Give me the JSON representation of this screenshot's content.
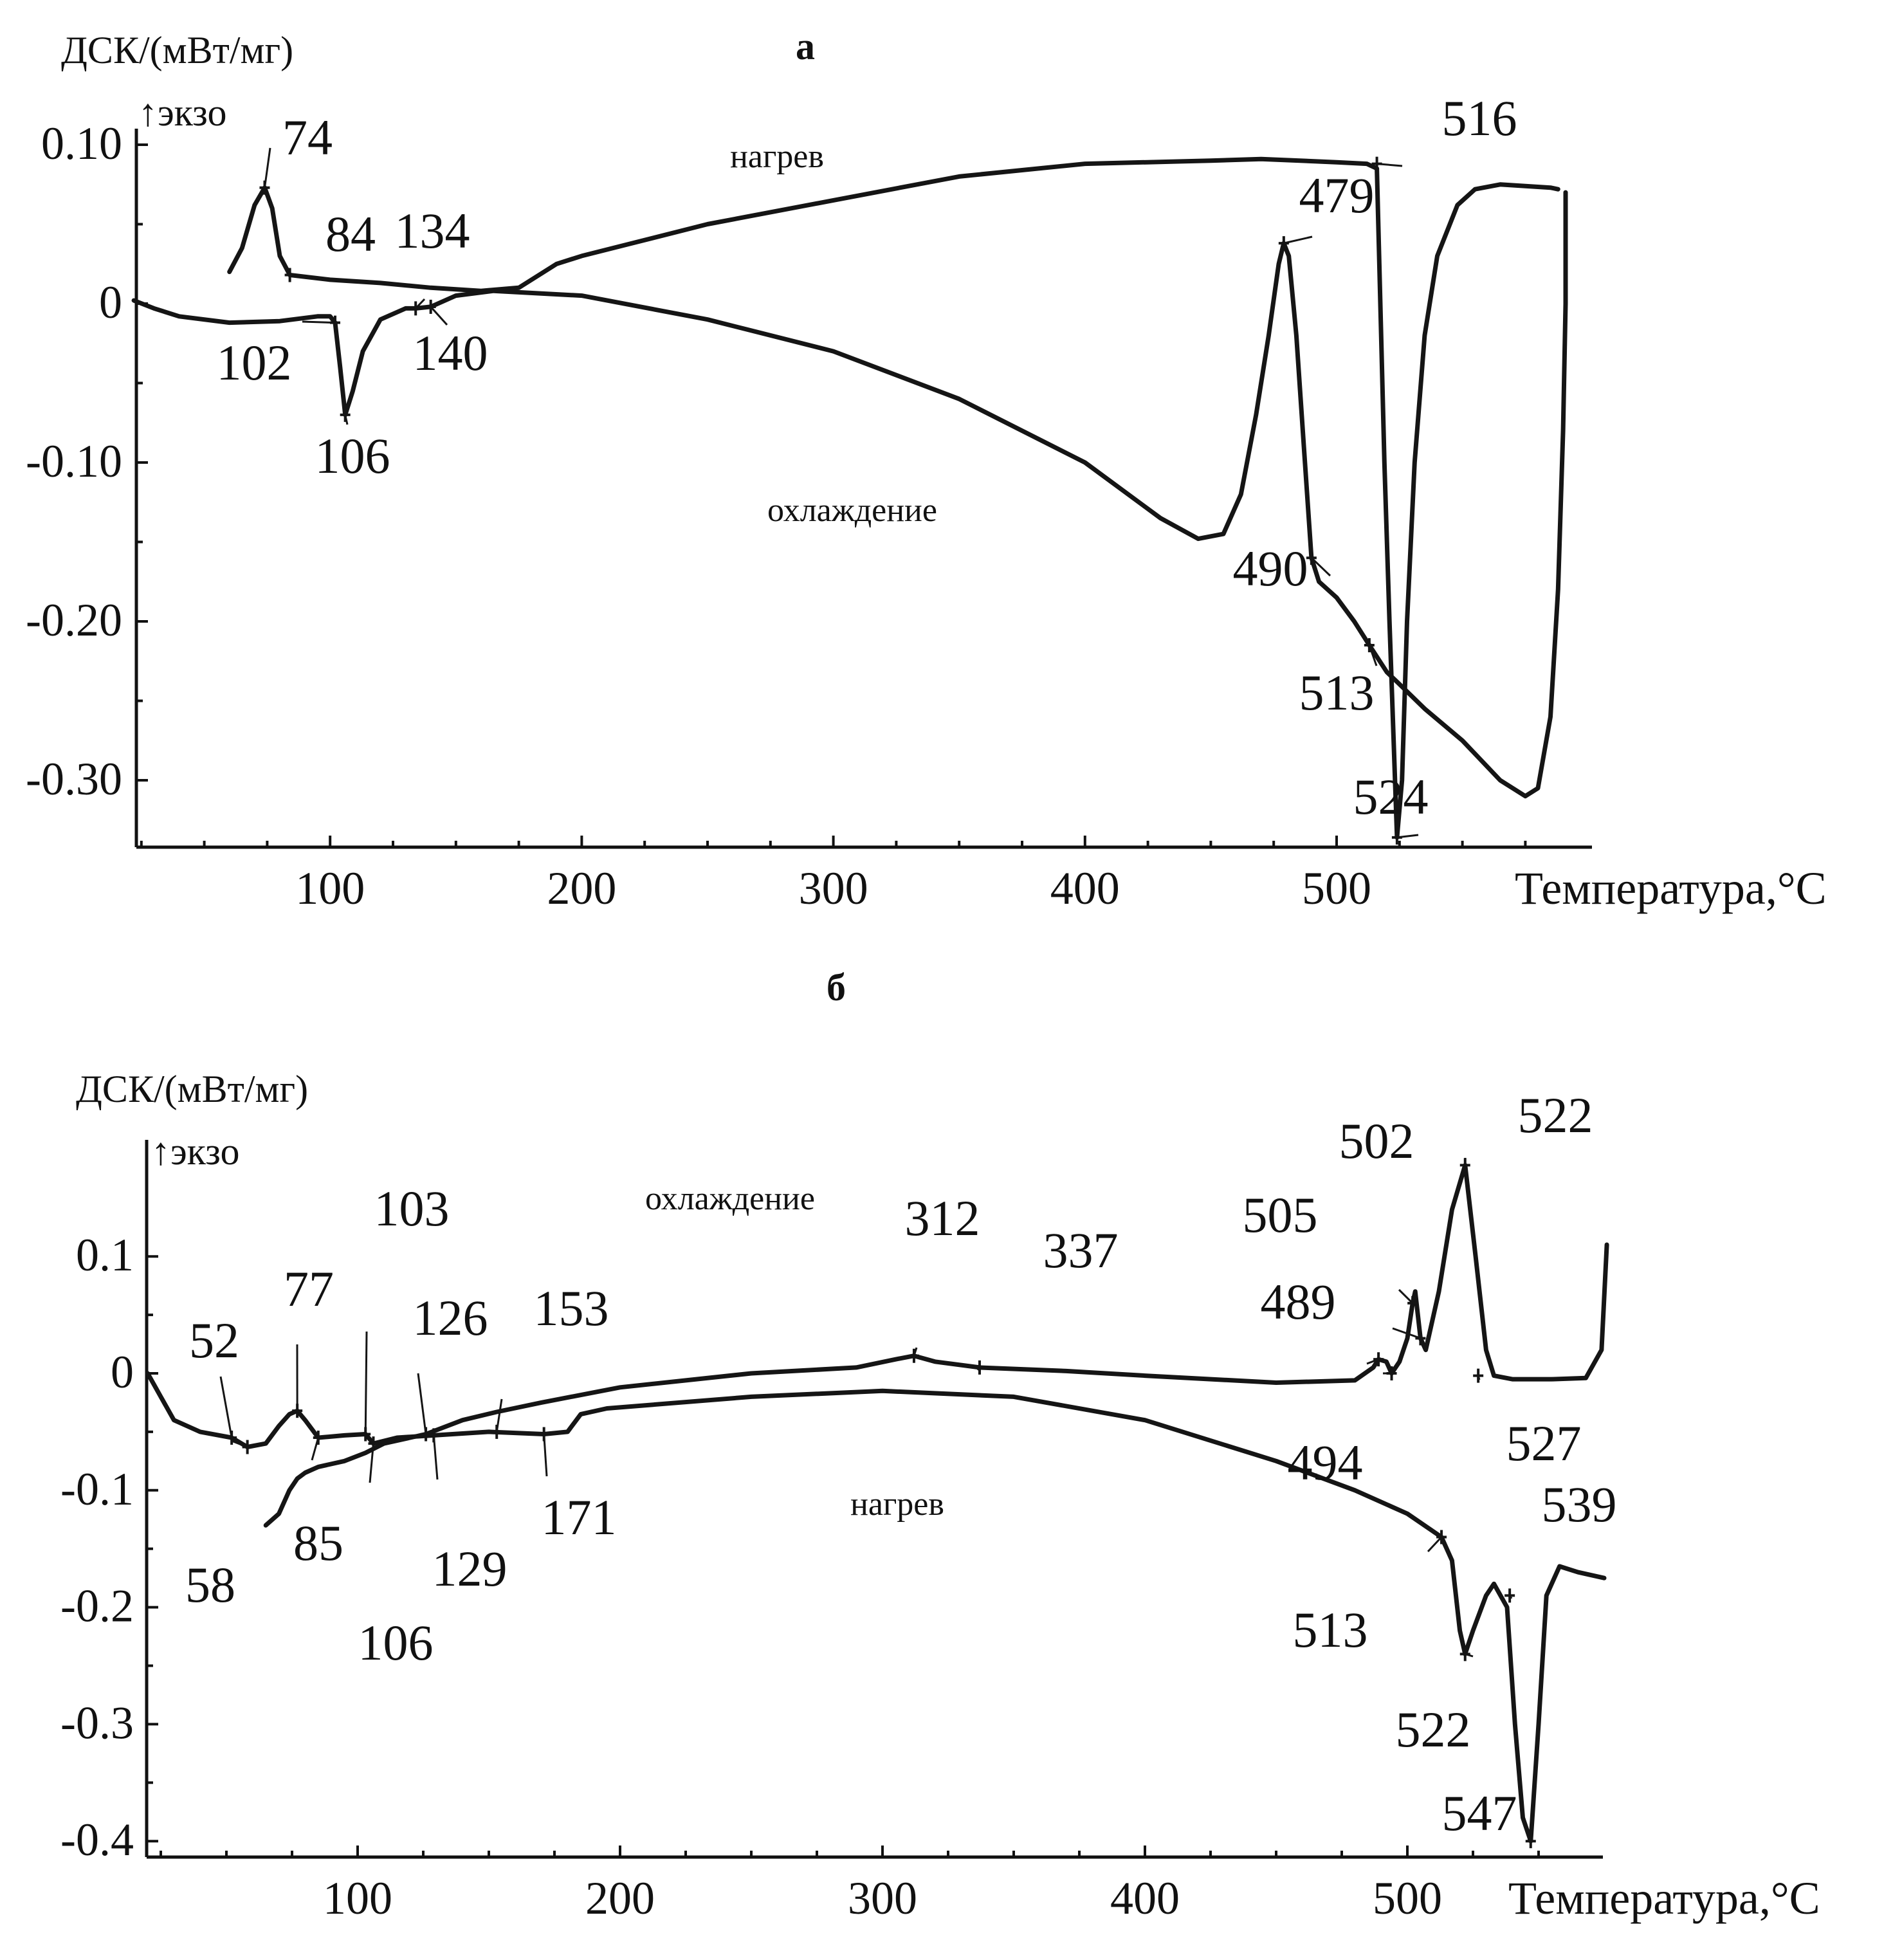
{
  "chart_data": [
    {
      "panel_label": "а",
      "type": "line",
      "ylabel": "ДСК/(мВт/мг)",
      "exo_label": "↑экзо",
      "xlabel": "Температура,°C",
      "xlim": [
        22,
        595
      ],
      "ylim": [
        -0.343,
        0.11
      ],
      "x_ticks": [
        100,
        200,
        300,
        400,
        500
      ],
      "y_ticks": [
        0.1,
        0,
        -0.1,
        -0.2,
        -0.3
      ],
      "y_tick_labels": [
        "0.10",
        "0",
        "-0.10",
        "-0.20",
        "-0.30"
      ],
      "series": [
        {
          "name": "нагрев",
          "label_at": [
            300,
            0.09
          ],
          "points": [
            [
              60,
              0.02
            ],
            [
              65,
              0.035
            ],
            [
              70,
              0.062
            ],
            [
              74,
              0.073
            ],
            [
              77,
              0.06
            ],
            [
              80,
              0.03
            ],
            [
              84,
              0.018
            ],
            [
              100,
              0.015
            ],
            [
              120,
              0.013
            ],
            [
              140,
              0.01
            ],
            [
              160,
              0.008
            ],
            [
              175,
              0.01
            ],
            [
              190,
              0.025
            ],
            [
              200,
              0.03
            ],
            [
              250,
              0.05
            ],
            [
              300,
              0.065
            ],
            [
              350,
              0.08
            ],
            [
              400,
              0.088
            ],
            [
              450,
              0.09
            ],
            [
              470,
              0.091
            ],
            [
              500,
              0.089
            ],
            [
              512,
              0.088
            ],
            [
              516,
              0.085
            ],
            [
              519,
              -0.1
            ],
            [
              521,
              -0.2
            ],
            [
              524,
              -0.336
            ],
            [
              526,
              -0.3
            ],
            [
              528,
              -0.2
            ],
            [
              531,
              -0.1
            ],
            [
              535,
              -0.02
            ],
            [
              540,
              0.03
            ],
            [
              548,
              0.062
            ],
            [
              555,
              0.072
            ],
            [
              565,
              0.075
            ],
            [
              575,
              0.074
            ],
            [
              585,
              0.073
            ],
            [
              588,
              0.072
            ]
          ]
        },
        {
          "name": "охлаждение",
          "label_at": [
            290,
            -0.13
          ],
          "points": [
            [
              22,
              0.002
            ],
            [
              30,
              -0.003
            ],
            [
              40,
              -0.008
            ],
            [
              60,
              -0.012
            ],
            [
              80,
              -0.011
            ],
            [
              95,
              -0.008
            ],
            [
              100,
              -0.008
            ],
            [
              102,
              -0.012
            ],
            [
              104,
              -0.04
            ],
            [
              106,
              -0.07
            ],
            [
              109,
              -0.055
            ],
            [
              113,
              -0.03
            ],
            [
              120,
              -0.01
            ],
            [
              130,
              -0.003
            ],
            [
              134,
              -0.003
            ],
            [
              140,
              -0.002
            ],
            [
              150,
              0.005
            ],
            [
              165,
              0.008
            ],
            [
              200,
              0.005
            ],
            [
              250,
              -0.01
            ],
            [
              300,
              -0.03
            ],
            [
              350,
              -0.06
            ],
            [
              400,
              -0.1
            ],
            [
              430,
              -0.135
            ],
            [
              445,
              -0.148
            ],
            [
              455,
              -0.145
            ],
            [
              462,
              -0.12
            ],
            [
              468,
              -0.07
            ],
            [
              473,
              -0.02
            ],
            [
              477,
              0.025
            ],
            [
              479,
              0.038
            ],
            [
              481,
              0.03
            ],
            [
              484,
              -0.02
            ],
            [
              487,
              -0.09
            ],
            [
              490,
              -0.16
            ],
            [
              493,
              -0.175
            ],
            [
              500,
              -0.185
            ],
            [
              507,
              -0.2
            ],
            [
              513,
              -0.215
            ],
            [
              520,
              -0.232
            ],
            [
              524,
              -0.238
            ],
            [
              535,
              -0.255
            ],
            [
              550,
              -0.275
            ],
            [
              565,
              -0.3
            ],
            [
              575,
              -0.31
            ],
            [
              580,
              -0.305
            ],
            [
              585,
              -0.26
            ],
            [
              588,
              -0.18
            ],
            [
              590,
              -0.08
            ],
            [
              591,
              0.0
            ],
            [
              591,
              0.07
            ]
          ]
        }
      ],
      "annotations": [
        {
          "text": "74",
          "x": 74,
          "y": 0.073
        },
        {
          "text": "84",
          "x": 84,
          "y": 0.018
        },
        {
          "text": "134",
          "x": 134,
          "y": -0.003
        },
        {
          "text": "102",
          "x": 102,
          "y": -0.012
        },
        {
          "text": "106",
          "x": 106,
          "y": -0.07
        },
        {
          "text": "140",
          "x": 140,
          "y": -0.002
        },
        {
          "text": "516",
          "x": 516,
          "y": 0.088
        },
        {
          "text": "479",
          "x": 479,
          "y": 0.038
        },
        {
          "text": "490",
          "x": 490,
          "y": -0.16
        },
        {
          "text": "513",
          "x": 513,
          "y": -0.215
        },
        {
          "text": "524",
          "x": 524,
          "y": -0.336
        }
      ]
    },
    {
      "panel_label": "б",
      "type": "line",
      "ylabel": "ДСК/(мВт/мг)",
      "exo_label": "↑экзо",
      "xlabel": "Температура,°C",
      "xlim": [
        20,
        578
      ],
      "ylim": [
        -0.41,
        0.198
      ],
      "x_ticks": [
        100,
        200,
        300,
        400,
        500
      ],
      "y_ticks": [
        0.1,
        0,
        -0.1,
        -0.2,
        -0.3,
        -0.4
      ],
      "y_tick_labels": [
        "0.1",
        "0",
        "-0.1",
        "-0.2",
        "-0.3",
        "-0.4"
      ],
      "series": [
        {
          "name": "охлаждение",
          "label_at": [
            245,
            0.14
          ],
          "points": [
            [
              65,
              -0.13
            ],
            [
              70,
              -0.12
            ],
            [
              74,
              -0.1
            ],
            [
              77,
              -0.09
            ],
            [
              80,
              -0.085
            ],
            [
              85,
              -0.08
            ],
            [
              95,
              -0.075
            ],
            [
              103,
              -0.068
            ],
            [
              110,
              -0.06
            ],
            [
              120,
              -0.055
            ],
            [
              126,
              -0.052
            ],
            [
              140,
              -0.04
            ],
            [
              153,
              -0.033
            ],
            [
              170,
              -0.025
            ],
            [
              200,
              -0.012
            ],
            [
              250,
              0.0
            ],
            [
              290,
              0.005
            ],
            [
              305,
              0.012
            ],
            [
              312,
              0.015
            ],
            [
              320,
              0.01
            ],
            [
              337,
              0.005
            ],
            [
              370,
              0.002
            ],
            [
              400,
              -0.002
            ],
            [
              450,
              -0.008
            ],
            [
              480,
              -0.006
            ],
            [
              487,
              0.005
            ],
            [
              489,
              0.012
            ],
            [
              492,
              0.01
            ],
            [
              494,
              0.0
            ],
            [
              497,
              0.01
            ],
            [
              500,
              0.03
            ],
            [
              502,
              0.06
            ],
            [
              503,
              0.07
            ],
            [
              505,
              0.03
            ],
            [
              507,
              0.02
            ],
            [
              512,
              0.07
            ],
            [
              517,
              0.14
            ],
            [
              522,
              0.178
            ],
            [
              526,
              0.1
            ],
            [
              530,
              0.02
            ],
            [
              533,
              -0.002
            ],
            [
              540,
              -0.005
            ],
            [
              555,
              -0.005
            ],
            [
              568,
              -0.004
            ],
            [
              574,
              0.02
            ],
            [
              576,
              0.11
            ]
          ]
        },
        {
          "name": "нагрев",
          "label_at": [
            290,
            -0.11
          ],
          "points": [
            [
              20,
              0.0
            ],
            [
              25,
              -0.02
            ],
            [
              30,
              -0.04
            ],
            [
              40,
              -0.05
            ],
            [
              52,
              -0.055
            ],
            [
              58,
              -0.063
            ],
            [
              65,
              -0.06
            ],
            [
              70,
              -0.045
            ],
            [
              74,
              -0.035
            ],
            [
              77,
              -0.032
            ],
            [
              80,
              -0.04
            ],
            [
              85,
              -0.055
            ],
            [
              95,
              -0.053
            ],
            [
              103,
              -0.052
            ],
            [
              106,
              -0.06
            ],
            [
              115,
              -0.055
            ],
            [
              129,
              -0.053
            ],
            [
              150,
              -0.05
            ],
            [
              171,
              -0.052
            ],
            [
              180,
              -0.05
            ],
            [
              185,
              -0.035
            ],
            [
              195,
              -0.03
            ],
            [
              250,
              -0.02
            ],
            [
              300,
              -0.015
            ],
            [
              350,
              -0.02
            ],
            [
              400,
              -0.04
            ],
            [
              450,
              -0.075
            ],
            [
              480,
              -0.1
            ],
            [
              500,
              -0.12
            ],
            [
              513,
              -0.14
            ],
            [
              517,
              -0.16
            ],
            [
              520,
              -0.22
            ],
            [
              522,
              -0.24
            ],
            [
              525,
              -0.22
            ],
            [
              530,
              -0.19
            ],
            [
              533,
              -0.18
            ],
            [
              538,
              -0.2
            ],
            [
              541,
              -0.3
            ],
            [
              544,
              -0.38
            ],
            [
              547,
              -0.4
            ],
            [
              550,
              -0.3
            ],
            [
              553,
              -0.19
            ],
            [
              558,
              -0.165
            ],
            [
              565,
              -0.17
            ],
            [
              575,
              -0.175
            ]
          ]
        }
      ],
      "annotations": [
        {
          "text": "52",
          "x": 52,
          "y": -0.055
        },
        {
          "text": "77",
          "x": 77,
          "y": -0.032
        },
        {
          "text": "103",
          "x": 103,
          "y": -0.052
        },
        {
          "text": "126",
          "x": 126,
          "y": -0.052
        },
        {
          "text": "153",
          "x": 153,
          "y": -0.05
        },
        {
          "text": "58",
          "x": 58,
          "y": -0.063
        },
        {
          "text": "85",
          "x": 85,
          "y": -0.055
        },
        {
          "text": "106",
          "x": 106,
          "y": -0.06
        },
        {
          "text": "129",
          "x": 129,
          "y": -0.053
        },
        {
          "text": "171",
          "x": 171,
          "y": -0.052
        },
        {
          "text": "312",
          "x": 312,
          "y": 0.015
        },
        {
          "text": "337",
          "x": 337,
          "y": 0.005
        },
        {
          "text": "489",
          "x": 489,
          "y": 0.012
        },
        {
          "text": "494",
          "x": 494,
          "y": 0.0
        },
        {
          "text": "505",
          "x": 505,
          "y": 0.03
        },
        {
          "text": "502",
          "x": 502,
          "y": 0.06
        },
        {
          "text": "522",
          "x": 522,
          "y": 0.178
        },
        {
          "text": "527",
          "x": 527,
          "y": -0.002
        },
        {
          "text": "513",
          "x": 513,
          "y": -0.14
        },
        {
          "text": "522",
          "x": 522,
          "y": -0.24
        },
        {
          "text": "539",
          "x": 539,
          "y": -0.19
        },
        {
          "text": "547",
          "x": 547,
          "y": -0.4
        }
      ]
    }
  ]
}
